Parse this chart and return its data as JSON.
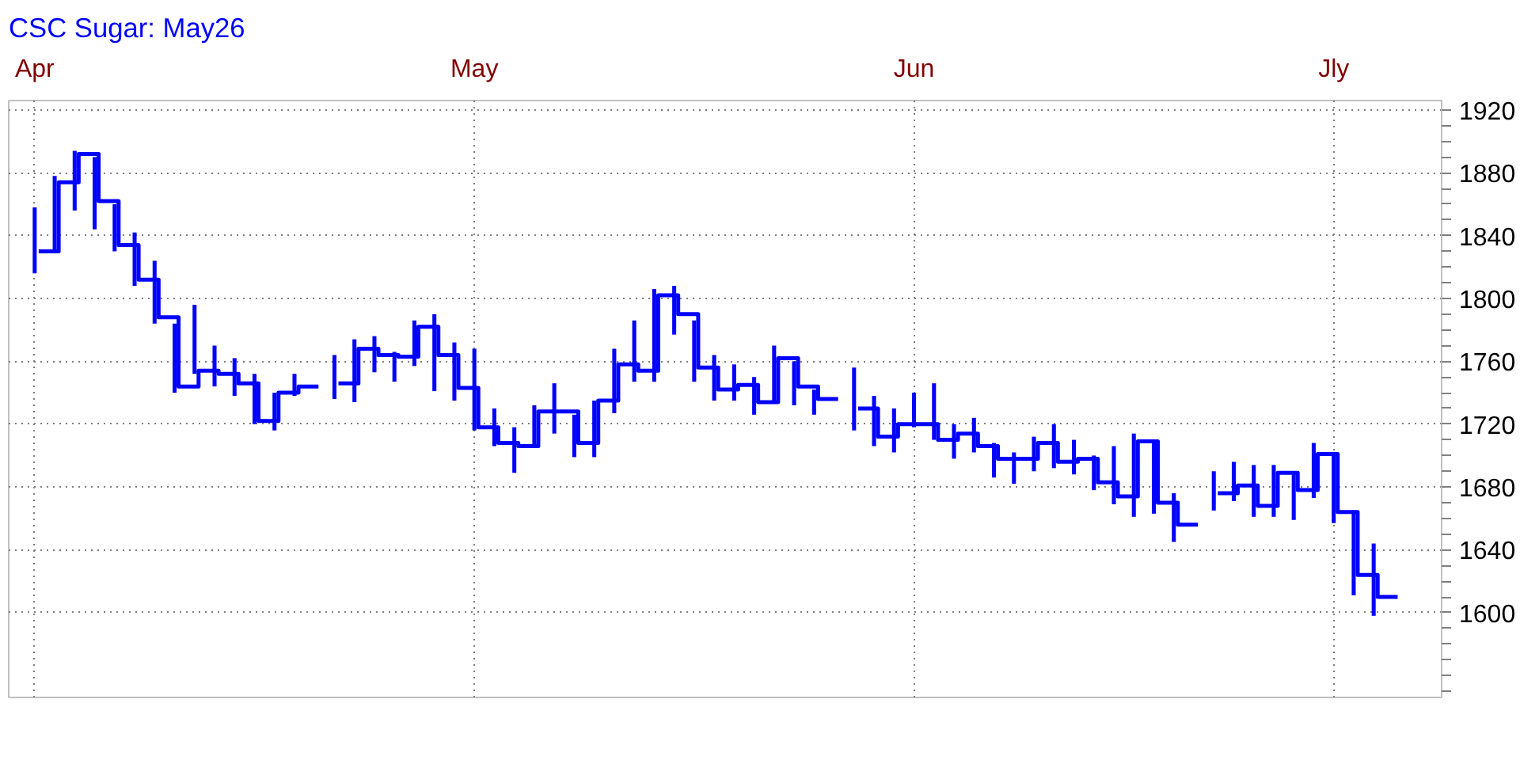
{
  "chart_data": {
    "type": "bar",
    "title": "CSC Sugar: May26",
    "categories": [
      "Apr",
      null,
      null,
      null,
      null,
      null,
      null,
      null,
      null,
      null,
      null,
      null,
      null,
      null,
      null,
      null,
      null,
      null,
      null,
      null,
      null,
      null,
      "May",
      null,
      null,
      null,
      null,
      null,
      null,
      null,
      null,
      null,
      null,
      null,
      null,
      null,
      null,
      null,
      null,
      null,
      null,
      null,
      null,
      null,
      "Jun",
      null,
      null,
      null,
      null,
      null,
      null,
      null,
      null,
      null,
      null,
      null,
      null,
      null,
      null,
      null,
      null,
      null,
      null,
      null,
      null,
      "Jly",
      null,
      null
    ],
    "series": [
      {
        "color": "#0000ff",
        "base": [
          1816,
          1830,
          1856,
          1844,
          1830,
          1808,
          1784,
          1740,
          1752,
          1744,
          1738,
          1720,
          1716,
          1738,
          null,
          1736,
          1734,
          1753,
          1747,
          1757,
          1741,
          1735,
          1716,
          1706,
          1689,
          1706,
          1714,
          1699,
          1699,
          1727,
          1747,
          1747,
          1777,
          1747,
          1735,
          1735,
          1726,
          1734,
          1732,
          1726,
          null,
          1716,
          1706,
          1702,
          1718,
          1710,
          1698,
          1702,
          1686,
          1682,
          1690,
          1692,
          1688,
          1678,
          1669,
          1661,
          1663,
          1645,
          null,
          1665,
          1671,
          1661,
          1661,
          1659,
          1673,
          1657,
          1611,
          1598
        ],
        "values": [
          42,
          48,
          38,
          46,
          30,
          34,
          40,
          44,
          44,
          26,
          24,
          32,
          24,
          14,
          null,
          28,
          40,
          23,
          19,
          29,
          49,
          37,
          52,
          24,
          29,
          26,
          32,
          27,
          36,
          41,
          39,
          59,
          31,
          39,
          29,
          23,
          24,
          36,
          28,
          16,
          null,
          40,
          32,
          28,
          22,
          36,
          22,
          22,
          22,
          20,
          22,
          28,
          22,
          22,
          37,
          53,
          46,
          31,
          null,
          25,
          25,
          33,
          33,
          30,
          35,
          45,
          54,
          46
        ]
      },
      {
        "type": "step",
        "color": "#0000ff",
        "values": [
          1830,
          1874,
          1892,
          1862,
          1834,
          1812,
          1788,
          1744,
          1754,
          1752,
          1746,
          1722,
          1740,
          1744,
          null,
          1746,
          1768,
          1764,
          1763,
          1782,
          1764,
          1743,
          1718,
          1708,
          1706,
          1728,
          1728,
          1708,
          1735,
          1758,
          1754,
          1802,
          1790,
          1756,
          1742,
          1745,
          1734,
          1762,
          1744,
          1736,
          null,
          1730,
          1712,
          1720,
          1720,
          1710,
          1714,
          1706,
          1698,
          1698,
          1708,
          1696,
          1698,
          1683,
          1674,
          1709,
          1670,
          1656,
          null,
          1676,
          1681,
          1668,
          1689,
          1678,
          1701,
          1664,
          1624,
          1610
        ]
      }
    ],
    "ylim": [
      1546,
      1926
    ],
    "yticks": [
      1600,
      1640,
      1680,
      1720,
      1760,
      1800,
      1840,
      1880,
      1920
    ],
    "grid": true
  }
}
